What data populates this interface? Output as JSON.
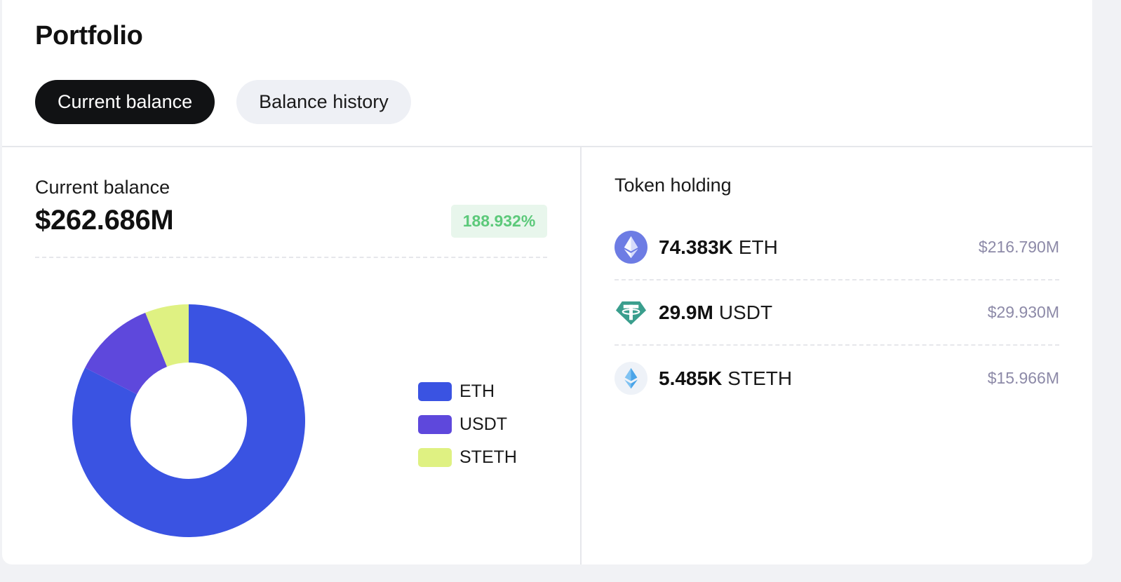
{
  "header": {
    "title": "Portfolio",
    "tabs": [
      {
        "label": "Current balance",
        "active": true
      },
      {
        "label": "Balance history",
        "active": false
      }
    ]
  },
  "balance": {
    "label": "Current balance",
    "value": "$262.686M",
    "change": "188.932%"
  },
  "chart_data": {
    "type": "pie",
    "donut": true,
    "categories": [
      "ETH",
      "USDT",
      "STETH"
    ],
    "values": [
      216.79,
      29.93,
      15.966
    ],
    "colors": [
      "#3a53e2",
      "#5e48dc",
      "#dff182"
    ],
    "legend": "right"
  },
  "holdings": {
    "title": "Token holding",
    "items": [
      {
        "amount": "74.383K",
        "symbol": "ETH",
        "usd": "$216.790M",
        "icon": "eth-icon"
      },
      {
        "amount": "29.9M",
        "symbol": "USDT",
        "usd": "$29.930M",
        "icon": "usdt-icon"
      },
      {
        "amount": "5.485K",
        "symbol": "STETH",
        "usd": "$15.966M",
        "icon": "steth-icon"
      }
    ]
  }
}
